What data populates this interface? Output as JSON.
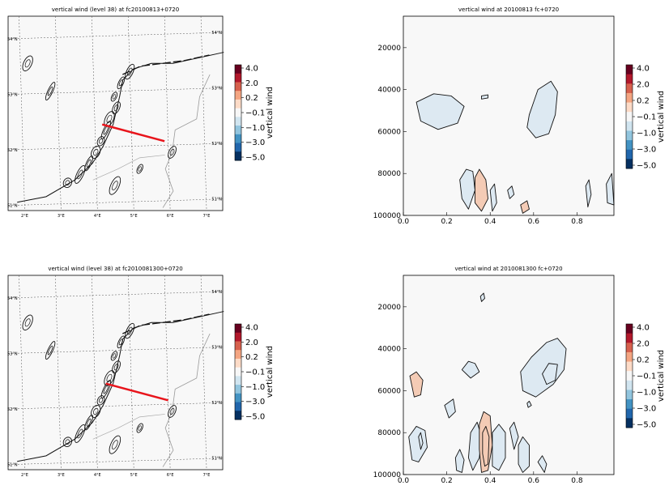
{
  "colorbar_ticks": [
    "4.0",
    "2.0",
    "0.2",
    "−0.1",
    "−1.0",
    "−3.0",
    "−5.0"
  ],
  "colorbar_label": "vertical wind",
  "colorbar_colors": [
    "#67001f",
    "#b2182b",
    "#d6604d",
    "#f4a582",
    "#fddbc7",
    "#f7f7f7",
    "#d1e5f0",
    "#92c5de",
    "#4393c3",
    "#2166ac",
    "#053061"
  ],
  "maps": [
    {
      "title": "vertical wind (level 38) at fc20100813+0720",
      "lat_labels": [
        "54°N",
        "53°N",
        "52°N",
        "51°N"
      ],
      "lon_labels": [
        "2°E",
        "3°E",
        "4°E",
        "5°E",
        "6°E",
        "7°E"
      ],
      "section_line": {
        "from": [
          4.2,
          52.4
        ],
        "to": [
          5.9,
          52.1
        ]
      }
    },
    {
      "title": "vertical wind (level 38) at fc2010081300+0720",
      "lat_labels": [
        "54°N",
        "53°N",
        "52°N",
        "51°N"
      ],
      "lon_labels": [
        "2°E",
        "3°E",
        "4°E",
        "5°E",
        "6°E",
        "7°E"
      ],
      "section_line": {
        "from": [
          4.3,
          52.4
        ],
        "to": [
          6.0,
          52.1
        ]
      }
    }
  ],
  "chart_data": [
    {
      "type": "heatmap",
      "title": "vertical wind at 20100813 fc+0720",
      "xlim": [
        0.0,
        0.97
      ],
      "ylim": [
        100000,
        5000
      ],
      "x_ticks": [
        "0.0",
        "0.2",
        "0.4",
        "0.6",
        "0.8"
      ],
      "y_ticks": [
        "20000",
        "40000",
        "60000",
        "80000",
        "100000"
      ],
      "contours": [
        {
          "sign": "neg",
          "points": [
            [
              0.06,
              46000
            ],
            [
              0.14,
              42000
            ],
            [
              0.22,
              43000
            ],
            [
              0.28,
              48000
            ],
            [
              0.25,
              56000
            ],
            [
              0.16,
              59000
            ],
            [
              0.08,
              55000
            ]
          ]
        },
        {
          "sign": "neg",
          "points": [
            [
              0.58,
              52000
            ],
            [
              0.62,
              40000
            ],
            [
              0.68,
              36000
            ],
            [
              0.71,
              41000
            ],
            [
              0.7,
              52000
            ],
            [
              0.67,
              61000
            ],
            [
              0.61,
              63000
            ],
            [
              0.57,
              58000
            ]
          ]
        },
        {
          "sign": "neg",
          "points": [
            [
              0.36,
              43000
            ],
            [
              0.39,
              42500
            ],
            [
              0.39,
              44000
            ],
            [
              0.36,
              44500
            ]
          ]
        },
        {
          "sign": "neg",
          "points": [
            [
              0.26,
              83000
            ],
            [
              0.29,
              78000
            ],
            [
              0.32,
              79000
            ],
            [
              0.33,
              88000
            ],
            [
              0.3,
              97000
            ],
            [
              0.27,
              92000
            ]
          ]
        },
        {
          "sign": "pos",
          "points": [
            [
              0.33,
              82000
            ],
            [
              0.35,
              78000
            ],
            [
              0.38,
              83000
            ],
            [
              0.39,
              92000
            ],
            [
              0.36,
              98000
            ],
            [
              0.33,
              94000
            ]
          ]
        },
        {
          "sign": "neg",
          "points": [
            [
              0.4,
              88000
            ],
            [
              0.42,
              85000
            ],
            [
              0.43,
              94000
            ],
            [
              0.41,
              98000
            ]
          ]
        },
        {
          "sign": "neg",
          "points": [
            [
              0.48,
              88000
            ],
            [
              0.5,
              86000
            ],
            [
              0.51,
              90000
            ],
            [
              0.49,
              92000
            ]
          ]
        },
        {
          "sign": "pos",
          "points": [
            [
              0.54,
              95000
            ],
            [
              0.57,
              93000
            ],
            [
              0.58,
              97000
            ],
            [
              0.55,
              99000
            ]
          ]
        },
        {
          "sign": "neg",
          "points": [
            [
              0.84,
              86000
            ],
            [
              0.855,
              83000
            ],
            [
              0.865,
              90000
            ],
            [
              0.85,
              96000
            ]
          ]
        },
        {
          "sign": "neg",
          "points": [
            [
              0.935,
              85000
            ],
            [
              0.96,
              80000
            ],
            [
              0.97,
              95000
            ],
            [
              0.94,
              94000
            ]
          ]
        }
      ]
    },
    {
      "type": "heatmap",
      "title": "vertical wind at 2010081300 fc+0720",
      "xlim": [
        0.0,
        0.97
      ],
      "ylim": [
        100000,
        5000
      ],
      "x_ticks": [
        "0.0",
        "0.2",
        "0.4",
        "0.6",
        "0.8"
      ],
      "y_ticks": [
        "20000",
        "40000",
        "60000",
        "80000",
        "100000"
      ],
      "contours": [
        {
          "sign": "neg",
          "points": [
            [
              0.355,
              15000
            ],
            [
              0.37,
              13500
            ],
            [
              0.375,
              16000
            ],
            [
              0.36,
              17500
            ]
          ]
        },
        {
          "sign": "neg",
          "points": [
            [
              0.54,
              51000
            ],
            [
              0.59,
              44000
            ],
            [
              0.66,
              37000
            ],
            [
              0.71,
              35000
            ],
            [
              0.75,
              40000
            ],
            [
              0.74,
              50000
            ],
            [
              0.69,
              57000
            ],
            [
              0.61,
              63000
            ],
            [
              0.55,
              60000
            ]
          ]
        },
        {
          "sign": "neg",
          "points": [
            [
              0.64,
              52000
            ],
            [
              0.67,
              47000
            ],
            [
              0.71,
              47500
            ],
            [
              0.7,
              55000
            ],
            [
              0.66,
              57000
            ]
          ]
        },
        {
          "sign": "neg",
          "points": [
            [
              0.27,
              50000
            ],
            [
              0.3,
              46000
            ],
            [
              0.33,
              47000
            ],
            [
              0.35,
              51000
            ],
            [
              0.31,
              54000
            ]
          ]
        },
        {
          "sign": "pos",
          "points": [
            [
              0.03,
              53000
            ],
            [
              0.06,
              51000
            ],
            [
              0.09,
              55000
            ],
            [
              0.08,
              62000
            ],
            [
              0.05,
              63000
            ]
          ]
        },
        {
          "sign": "neg",
          "points": [
            [
              0.19,
              67000
            ],
            [
              0.23,
              64000
            ],
            [
              0.24,
              70000
            ],
            [
              0.21,
              73000
            ]
          ]
        },
        {
          "sign": "neg",
          "points": [
            [
              0.57,
              66000
            ],
            [
              0.58,
              65000
            ],
            [
              0.59,
              67000
            ],
            [
              0.575,
              68000
            ]
          ]
        },
        {
          "sign": "neg",
          "points": [
            [
              0.025,
              82000
            ],
            [
              0.06,
              77000
            ],
            [
              0.1,
              79000
            ],
            [
              0.11,
              87000
            ],
            [
              0.07,
              94000
            ],
            [
              0.04,
              93000
            ]
          ]
        },
        {
          "sign": "neg",
          "points": [
            [
              0.07,
              82000
            ],
            [
              0.08,
              80000
            ],
            [
              0.09,
              85000
            ],
            [
              0.08,
              88000
            ]
          ]
        },
        {
          "sign": "neg",
          "points": [
            [
              0.31,
              80000
            ],
            [
              0.34,
              75000
            ],
            [
              0.36,
              82000
            ],
            [
              0.35,
              92000
            ],
            [
              0.32,
              98000
            ],
            [
              0.3,
              92000
            ]
          ]
        },
        {
          "sign": "pos",
          "points": [
            [
              0.35,
              76000
            ],
            [
              0.37,
              70000
            ],
            [
              0.4,
              72000
            ],
            [
              0.41,
              86000
            ],
            [
              0.39,
              98000
            ],
            [
              0.36,
              99000
            ],
            [
              0.35,
              88000
            ]
          ]
        },
        {
          "sign": "pos",
          "points": [
            [
              0.365,
              80000
            ],
            [
              0.38,
              77000
            ],
            [
              0.395,
              82000
            ],
            [
              0.39,
              95000
            ],
            [
              0.375,
              96000
            ],
            [
              0.365,
              90000
            ]
          ]
        },
        {
          "sign": "neg",
          "points": [
            [
              0.41,
              80000
            ],
            [
              0.44,
              76000
            ],
            [
              0.47,
              80000
            ],
            [
              0.47,
              92000
            ],
            [
              0.44,
              98000
            ],
            [
              0.41,
              96000
            ]
          ]
        },
        {
          "sign": "neg",
          "points": [
            [
              0.49,
              78000
            ],
            [
              0.51,
              75000
            ],
            [
              0.53,
              82000
            ],
            [
              0.51,
              88000
            ]
          ]
        },
        {
          "sign": "neg",
          "points": [
            [
              0.53,
              86000
            ],
            [
              0.55,
              82000
            ],
            [
              0.58,
              86000
            ],
            [
              0.58,
              96000
            ],
            [
              0.55,
              99000
            ],
            [
              0.53,
              95000
            ]
          ]
        },
        {
          "sign": "neg",
          "points": [
            [
              0.24,
              92000
            ],
            [
              0.26,
              88000
            ],
            [
              0.28,
              93000
            ],
            [
              0.27,
              99000
            ],
            [
              0.245,
              98000
            ]
          ]
        },
        {
          "sign": "neg",
          "points": [
            [
              0.62,
              94000
            ],
            [
              0.64,
              91000
            ],
            [
              0.66,
              95000
            ],
            [
              0.65,
              99000
            ]
          ]
        }
      ]
    }
  ]
}
